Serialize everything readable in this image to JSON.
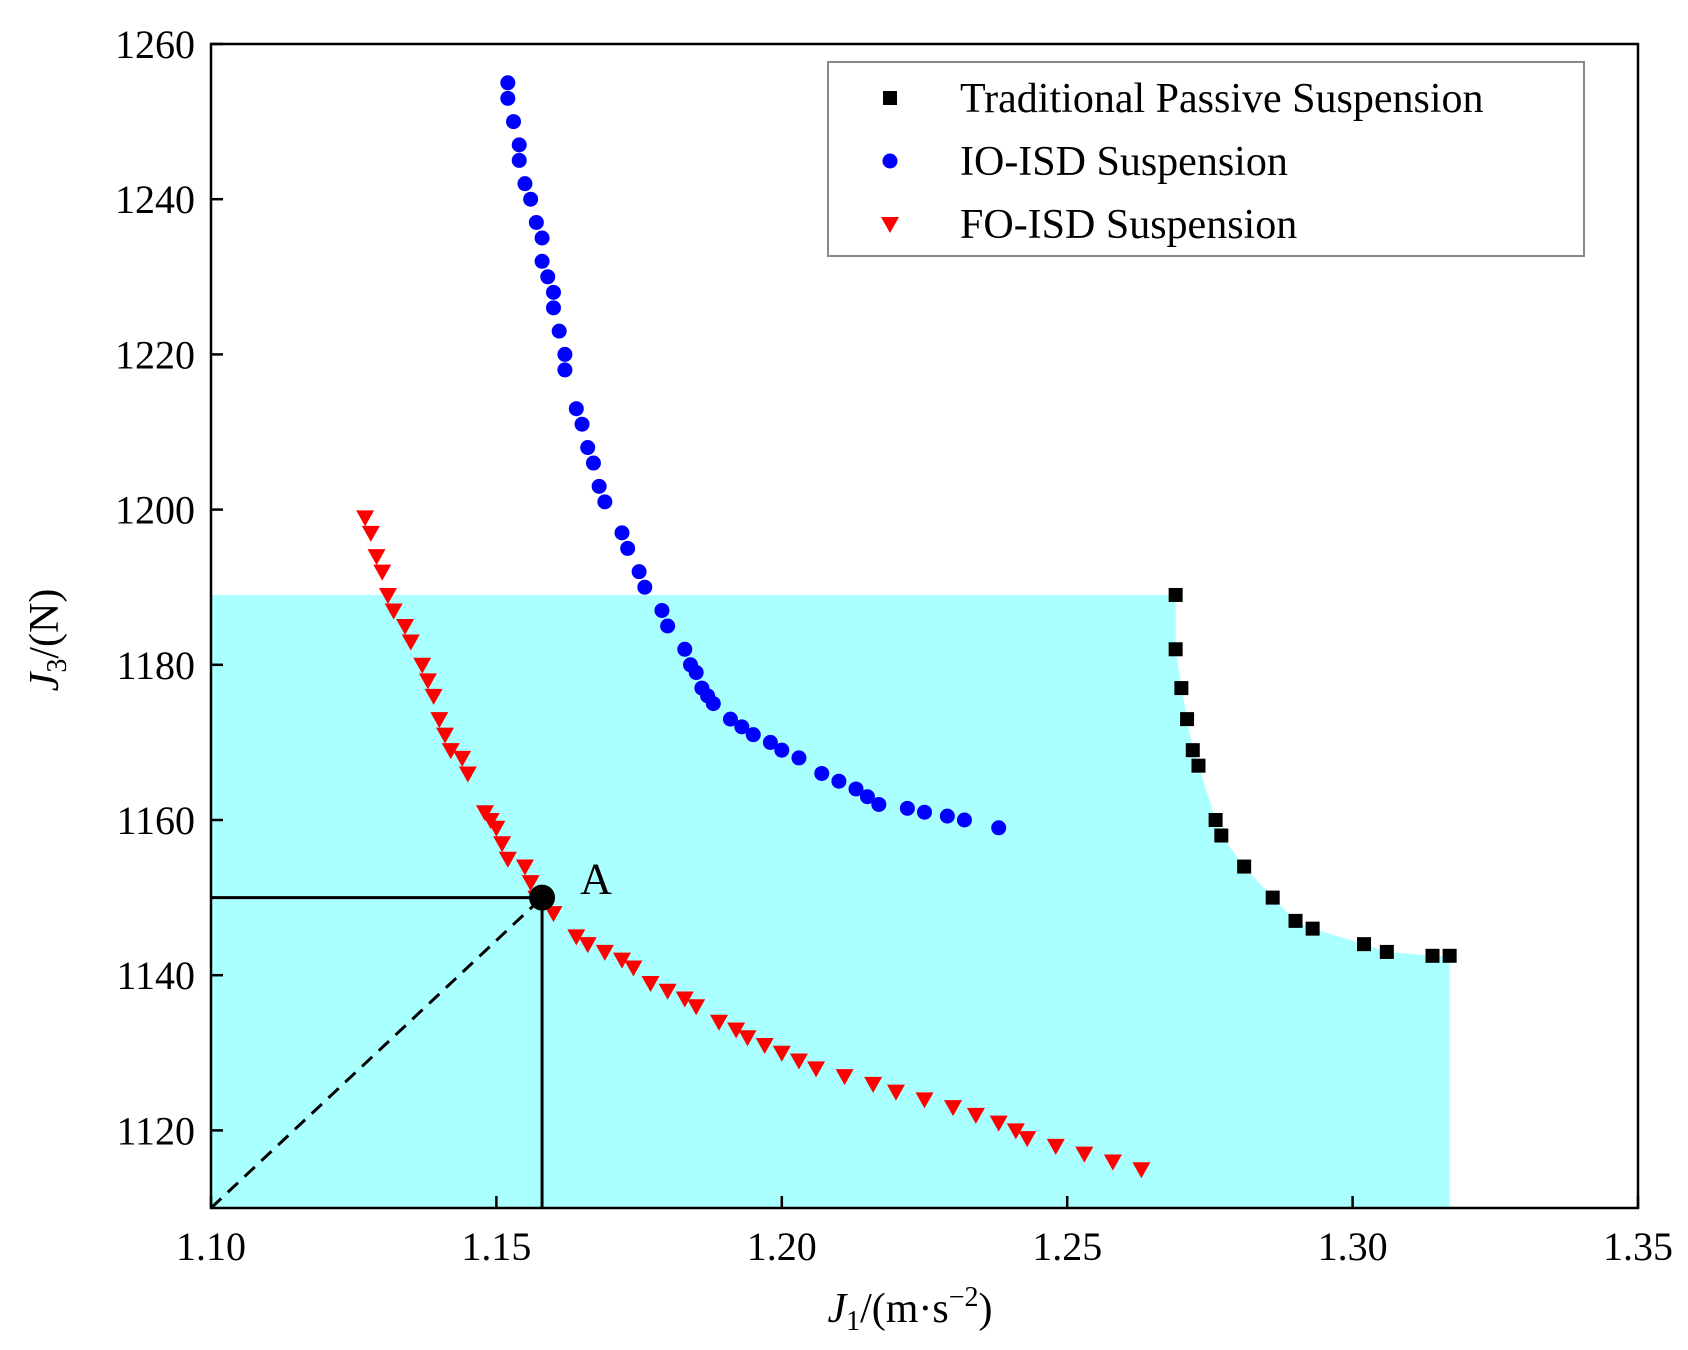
{
  "chart_data": {
    "type": "scatter",
    "title": "",
    "xlabel": {
      "main": "J",
      "sub": "1",
      "unit_prefix": "/(m·s",
      "unit_sup": "−2",
      "unit_suffix": ")"
    },
    "ylabel": {
      "main": "J",
      "sub": "3",
      "unit": "/(N)"
    },
    "xlim": [
      1.1,
      1.35
    ],
    "ylim": [
      1110,
      1260
    ],
    "xticks": [
      1.1,
      1.15,
      1.2,
      1.25,
      1.3,
      1.35
    ],
    "xtick_labels": [
      "1.10",
      "1.15",
      "1.20",
      "1.25",
      "1.30",
      "1.35"
    ],
    "yticks": [
      1120,
      1140,
      1160,
      1180,
      1200,
      1220,
      1240,
      1260
    ],
    "ytick_labels": [
      "1120",
      "1140",
      "1160",
      "1180",
      "1200",
      "1220",
      "1240",
      "1260"
    ],
    "grid": false,
    "legend_position": "top-right",
    "series": [
      {
        "name": "Traditional Passive Suspension",
        "marker": "square",
        "color": "#000000",
        "points": [
          [
            1.269,
            1189
          ],
          [
            1.269,
            1182
          ],
          [
            1.27,
            1177
          ],
          [
            1.271,
            1173
          ],
          [
            1.272,
            1169
          ],
          [
            1.273,
            1167
          ],
          [
            1.276,
            1160
          ],
          [
            1.277,
            1158
          ],
          [
            1.281,
            1154
          ],
          [
            1.286,
            1150
          ],
          [
            1.29,
            1147
          ],
          [
            1.293,
            1146
          ],
          [
            1.302,
            1144
          ],
          [
            1.306,
            1143
          ],
          [
            1.314,
            1142.5
          ],
          [
            1.317,
            1142.5
          ]
        ]
      },
      {
        "name": "IO-ISD Suspension",
        "marker": "circle",
        "color": "#0000ff",
        "points": [
          [
            1.152,
            1255
          ],
          [
            1.152,
            1253
          ],
          [
            1.153,
            1250
          ],
          [
            1.154,
            1247
          ],
          [
            1.154,
            1245
          ],
          [
            1.155,
            1242
          ],
          [
            1.156,
            1240
          ],
          [
            1.157,
            1237
          ],
          [
            1.158,
            1235
          ],
          [
            1.158,
            1232
          ],
          [
            1.159,
            1230
          ],
          [
            1.16,
            1228
          ],
          [
            1.16,
            1226
          ],
          [
            1.161,
            1223
          ],
          [
            1.162,
            1220
          ],
          [
            1.162,
            1218
          ],
          [
            1.164,
            1213
          ],
          [
            1.165,
            1211
          ],
          [
            1.166,
            1208
          ],
          [
            1.167,
            1206
          ],
          [
            1.168,
            1203
          ],
          [
            1.169,
            1201
          ],
          [
            1.172,
            1197
          ],
          [
            1.173,
            1195
          ],
          [
            1.175,
            1192
          ],
          [
            1.176,
            1190
          ],
          [
            1.179,
            1187
          ],
          [
            1.18,
            1185
          ],
          [
            1.183,
            1182
          ],
          [
            1.184,
            1180
          ],
          [
            1.185,
            1179
          ],
          [
            1.186,
            1177
          ],
          [
            1.187,
            1176
          ],
          [
            1.188,
            1175
          ],
          [
            1.191,
            1173
          ],
          [
            1.193,
            1172
          ],
          [
            1.195,
            1171
          ],
          [
            1.198,
            1170
          ],
          [
            1.2,
            1169
          ],
          [
            1.203,
            1168
          ],
          [
            1.207,
            1166
          ],
          [
            1.21,
            1165
          ],
          [
            1.213,
            1164
          ],
          [
            1.215,
            1163
          ],
          [
            1.217,
            1162
          ],
          [
            1.222,
            1161.5
          ],
          [
            1.225,
            1161
          ],
          [
            1.229,
            1160.5
          ],
          [
            1.232,
            1160
          ],
          [
            1.238,
            1159
          ]
        ]
      },
      {
        "name": "FO-ISD Suspension",
        "marker": "triangle-down",
        "color": "#ff0000",
        "points": [
          [
            1.127,
            1199
          ],
          [
            1.128,
            1197
          ],
          [
            1.129,
            1194
          ],
          [
            1.13,
            1192
          ],
          [
            1.131,
            1189
          ],
          [
            1.132,
            1187
          ],
          [
            1.134,
            1185
          ],
          [
            1.135,
            1183
          ],
          [
            1.137,
            1180
          ],
          [
            1.138,
            1178
          ],
          [
            1.139,
            1176
          ],
          [
            1.14,
            1173
          ],
          [
            1.141,
            1171
          ],
          [
            1.142,
            1169
          ],
          [
            1.144,
            1168
          ],
          [
            1.145,
            1166
          ],
          [
            1.148,
            1161
          ],
          [
            1.149,
            1160
          ],
          [
            1.15,
            1159
          ],
          [
            1.151,
            1157
          ],
          [
            1.152,
            1155
          ],
          [
            1.155,
            1154
          ],
          [
            1.156,
            1152
          ],
          [
            1.157,
            1150
          ],
          [
            1.16,
            1148
          ],
          [
            1.164,
            1145
          ],
          [
            1.166,
            1144
          ],
          [
            1.169,
            1143
          ],
          [
            1.172,
            1142
          ],
          [
            1.174,
            1141
          ],
          [
            1.177,
            1139
          ],
          [
            1.18,
            1138
          ],
          [
            1.183,
            1137
          ],
          [
            1.185,
            1136
          ],
          [
            1.189,
            1134
          ],
          [
            1.192,
            1133
          ],
          [
            1.194,
            1132
          ],
          [
            1.197,
            1131
          ],
          [
            1.2,
            1130
          ],
          [
            1.203,
            1129
          ],
          [
            1.206,
            1128
          ],
          [
            1.211,
            1127
          ],
          [
            1.216,
            1126
          ],
          [
            1.22,
            1125
          ],
          [
            1.225,
            1124
          ],
          [
            1.23,
            1123
          ],
          [
            1.234,
            1122
          ],
          [
            1.238,
            1121
          ],
          [
            1.241,
            1120
          ],
          [
            1.243,
            1119
          ],
          [
            1.248,
            1118
          ],
          [
            1.253,
            1117
          ],
          [
            1.258,
            1116
          ],
          [
            1.263,
            1115
          ]
        ]
      }
    ],
    "feasible_region": {
      "color": "#aaffff",
      "outline": [
        [
          1.1,
          1189
        ],
        [
          1.269,
          1189
        ],
        [
          1.269,
          1182
        ],
        [
          1.27,
          1177
        ],
        [
          1.271,
          1173
        ],
        [
          1.272,
          1169
        ],
        [
          1.273,
          1167
        ],
        [
          1.276,
          1160
        ],
        [
          1.277,
          1158
        ],
        [
          1.281,
          1154
        ],
        [
          1.286,
          1150
        ],
        [
          1.29,
          1147
        ],
        [
          1.293,
          1146
        ],
        [
          1.302,
          1144
        ],
        [
          1.306,
          1143
        ],
        [
          1.314,
          1142.5
        ],
        [
          1.317,
          1142.5
        ],
        [
          1.317,
          1110
        ],
        [
          1.1,
          1110
        ]
      ]
    },
    "annotations": [
      {
        "label": "A",
        "x": 1.158,
        "y": 1150,
        "point_color": "#000000"
      }
    ],
    "reference_lines": [
      {
        "style": "solid",
        "from": [
          1.1,
          1150
        ],
        "to": [
          1.158,
          1150
        ]
      },
      {
        "style": "solid",
        "from": [
          1.158,
          1150
        ],
        "to": [
          1.158,
          1110
        ]
      },
      {
        "style": "dashed",
        "from": [
          1.1,
          1110
        ],
        "to": [
          1.158,
          1150
        ]
      }
    ]
  }
}
